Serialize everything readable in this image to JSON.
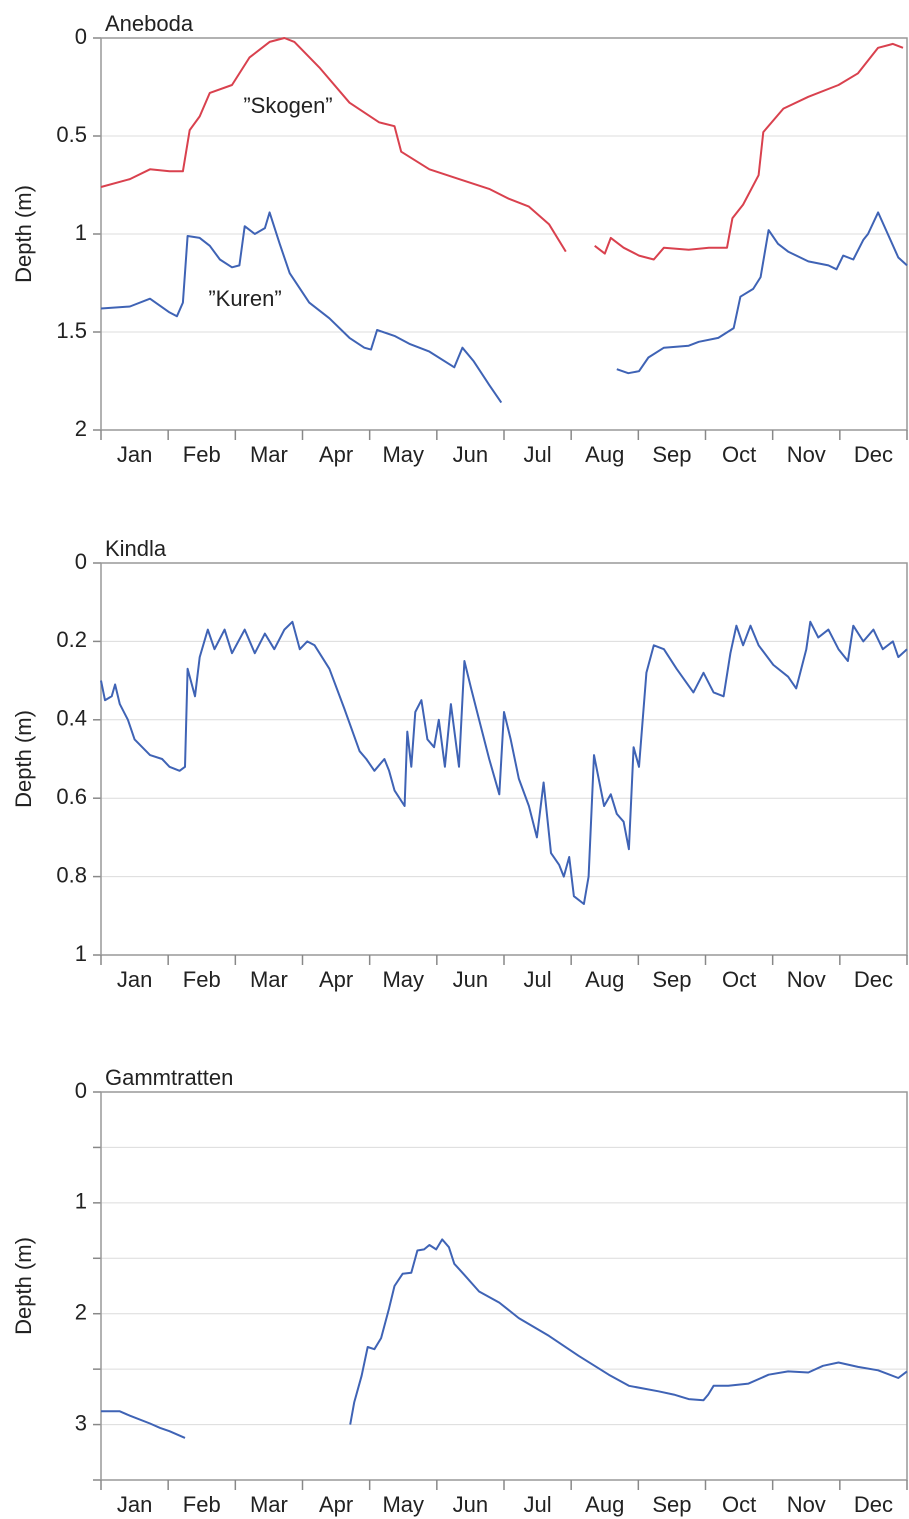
{
  "chart_data": [
    {
      "type": "line",
      "title": "Aneboda",
      "ylabel": "Depth (m)",
      "grid": true,
      "xlim": [
        0,
        12
      ],
      "xticks": [
        {
          "value": 0.5,
          "label": "Jan"
        },
        {
          "value": 1.5,
          "label": "Feb"
        },
        {
          "value": 2.5,
          "label": "Mar"
        },
        {
          "value": 3.5,
          "label": "Apr"
        },
        {
          "value": 4.5,
          "label": "May"
        },
        {
          "value": 5.5,
          "label": "Jun"
        },
        {
          "value": 6.5,
          "label": "Jul"
        },
        {
          "value": 7.5,
          "label": "Aug"
        },
        {
          "value": 8.5,
          "label": "Sep"
        },
        {
          "value": 9.5,
          "label": "Oct"
        },
        {
          "value": 10.5,
          "label": "Nov"
        },
        {
          "value": 11.5,
          "label": "Dec"
        }
      ],
      "ylim": [
        2,
        0
      ],
      "yticks": [
        0,
        0.5,
        {
          "value": 1,
          "label": "1.0"
        },
        1.5,
        {
          "value": 2,
          "label": "2.0"
        }
      ],
      "annotations": [
        "”Skogen”",
        "”Kuren”"
      ],
      "series": [
        {
          "name": "”Skogen”",
          "color": "#d9414e",
          "x": [
            0,
            0.43,
            0.73,
            1.02,
            1.22,
            1.32,
            1.47,
            1.62,
            1.95,
            2.21,
            2.51,
            2.73,
            2.88,
            3.25,
            3.7,
            4.14,
            4.37,
            4.47,
            4.89,
            5.33,
            5.78,
            6.07,
            6.37,
            6.67,
            6.92,
            7.1,
            7.35,
            7.5,
            7.59,
            7.78,
            8.01,
            8.23,
            8.38,
            8.75,
            9.05,
            9.32,
            9.4,
            9.56,
            9.79,
            9.86,
            10.16,
            10.53,
            10.98,
            11.27,
            11.57,
            11.79,
            11.94
          ],
          "values": [
            0.76,
            0.72,
            0.67,
            0.68,
            0.68,
            0.47,
            0.4,
            0.28,
            0.24,
            0.1,
            0.02,
            0,
            0.02,
            0.15,
            0.33,
            0.43,
            0.45,
            0.58,
            0.67,
            0.72,
            0.77,
            0.82,
            0.86,
            0.95,
            1.09,
            null,
            1.06,
            1.1,
            1.02,
            1.07,
            1.11,
            1.13,
            1.07,
            1.08,
            1.07,
            1.07,
            0.92,
            0.85,
            0.7,
            0.48,
            0.36,
            0.3,
            0.24,
            0.18,
            0.05,
            0.03,
            0.05
          ]
        },
        {
          "name": "”Kuren”",
          "color": "#3f63b5",
          "x": [
            0,
            0.43,
            0.73,
            1.02,
            1.13,
            1.22,
            1.29,
            1.47,
            1.62,
            1.77,
            1.95,
            2.06,
            2.14,
            2.29,
            2.44,
            2.51,
            2.66,
            2.81,
            3.1,
            3.4,
            3.7,
            3.92,
            4.02,
            4.11,
            4.37,
            4.59,
            4.89,
            5.26,
            5.38,
            5.55,
            5.78,
            5.96,
            7.0,
            7.68,
            7.85,
            8.01,
            8.15,
            8.38,
            8.75,
            8.9,
            9.19,
            9.42,
            9.52,
            9.71,
            9.82,
            9.94,
            10.08,
            10.23,
            10.53,
            10.83,
            10.95,
            11.05,
            11.2,
            11.35,
            11.42,
            11.57,
            11.87,
            12.0
          ],
          "values": [
            1.38,
            1.37,
            1.33,
            1.4,
            1.42,
            1.35,
            1.01,
            1.02,
            1.06,
            1.13,
            1.17,
            1.16,
            0.96,
            1.0,
            0.97,
            0.89,
            1.05,
            1.2,
            1.35,
            1.43,
            1.53,
            1.58,
            1.59,
            1.49,
            1.52,
            1.56,
            1.6,
            1.68,
            1.58,
            1.65,
            1.77,
            1.86,
            null,
            1.69,
            1.71,
            1.7,
            1.63,
            1.58,
            1.57,
            1.55,
            1.53,
            1.48,
            1.32,
            1.28,
            1.22,
            0.98,
            1.05,
            1.09,
            1.14,
            1.16,
            1.18,
            1.11,
            1.13,
            1.03,
            1.0,
            0.89,
            1.12,
            1.16
          ]
        }
      ]
    },
    {
      "type": "line",
      "title": "Kindla",
      "ylabel": "Depth (m)",
      "grid": true,
      "xlim": [
        0,
        12
      ],
      "xticks": [
        {
          "value": 0.5,
          "label": "Jan"
        },
        {
          "value": 1.5,
          "label": "Feb"
        },
        {
          "value": 2.5,
          "label": "Mar"
        },
        {
          "value": 3.5,
          "label": "Apr"
        },
        {
          "value": 4.5,
          "label": "May"
        },
        {
          "value": 5.5,
          "label": "Jun"
        },
        {
          "value": 6.5,
          "label": "Jul"
        },
        {
          "value": 7.5,
          "label": "Aug"
        },
        {
          "value": 8.5,
          "label": "Sep"
        },
        {
          "value": 9.5,
          "label": "Oct"
        },
        {
          "value": 10.5,
          "label": "Nov"
        },
        {
          "value": 11.5,
          "label": "Dec"
        }
      ],
      "ylim": [
        1,
        0
      ],
      "yticks": [
        0,
        0.2,
        0.4,
        0.6,
        0.8,
        {
          "value": 1,
          "label": "1.0"
        }
      ],
      "series": [
        {
          "name": "Kindla",
          "color": "#3f63b5",
          "x": [
            0,
            0.06,
            0.16,
            0.21,
            0.28,
            0.4,
            0.5,
            0.73,
            0.91,
            1.02,
            1.17,
            1.25,
            1.29,
            1.4,
            1.47,
            1.59,
            1.69,
            1.84,
            1.95,
            2.14,
            2.29,
            2.44,
            2.58,
            2.73,
            2.85,
            2.96,
            3.07,
            3.18,
            3.4,
            3.62,
            3.85,
            3.95,
            4.07,
            4.22,
            4.29,
            4.37,
            4.52,
            4.56,
            4.62,
            4.68,
            4.77,
            4.86,
            4.96,
            5.03,
            5.12,
            5.21,
            5.33,
            5.41,
            5.51,
            5.63,
            5.78,
            5.93,
            6.0,
            6.1,
            6.22,
            6.37,
            6.49,
            6.59,
            6.7,
            6.82,
            6.89,
            6.97,
            7.04,
            7.19,
            7.26,
            7.34,
            7.49,
            7.59,
            7.68,
            7.78,
            7.86,
            7.93,
            8.01,
            8.12,
            8.23,
            8.38,
            8.57,
            8.82,
            8.97,
            9.12,
            9.27,
            9.37,
            9.46,
            9.56,
            9.67,
            9.79,
            10.01,
            10.23,
            10.35,
            10.5,
            10.56,
            10.68,
            10.83,
            10.98,
            11.12,
            11.2,
            11.35,
            11.5,
            11.64,
            11.79,
            11.87,
            12.0
          ],
          "values": [
            0.3,
            0.35,
            0.34,
            0.31,
            0.36,
            0.4,
            0.45,
            0.49,
            0.5,
            0.52,
            0.53,
            0.52,
            0.27,
            0.34,
            0.24,
            0.17,
            0.22,
            0.17,
            0.23,
            0.17,
            0.23,
            0.18,
            0.22,
            0.17,
            0.15,
            0.22,
            0.2,
            0.21,
            0.27,
            0.37,
            0.48,
            0.5,
            0.53,
            0.5,
            0.53,
            0.58,
            0.62,
            0.43,
            0.52,
            0.38,
            0.35,
            0.45,
            0.47,
            0.4,
            0.52,
            0.36,
            0.52,
            0.25,
            0.32,
            0.4,
            0.5,
            0.59,
            0.38,
            0.45,
            0.55,
            0.62,
            0.7,
            0.56,
            0.74,
            0.77,
            0.8,
            0.75,
            0.85,
            0.87,
            0.8,
            0.49,
            0.62,
            0.59,
            0.64,
            0.66,
            0.73,
            0.47,
            0.52,
            0.28,
            0.21,
            0.22,
            0.27,
            0.33,
            0.28,
            0.33,
            0.34,
            0.23,
            0.16,
            0.21,
            0.16,
            0.21,
            0.26,
            0.29,
            0.32,
            0.22,
            0.15,
            0.19,
            0.17,
            0.22,
            0.25,
            0.16,
            0.2,
            0.17,
            0.22,
            0.2,
            0.24,
            0.22
          ]
        }
      ]
    },
    {
      "type": "line",
      "title": "Gammtratten",
      "ylabel": "Depth (m)",
      "grid": true,
      "xlim": [
        0,
        12
      ],
      "xticks": [
        {
          "value": 0.5,
          "label": "Jan"
        },
        {
          "value": 1.5,
          "label": "Feb"
        },
        {
          "value": 2.5,
          "label": "Mar"
        },
        {
          "value": 3.5,
          "label": "Apr"
        },
        {
          "value": 4.5,
          "label": "May"
        },
        {
          "value": 5.5,
          "label": "Jun"
        },
        {
          "value": 6.5,
          "label": "Jul"
        },
        {
          "value": 7.5,
          "label": "Aug"
        },
        {
          "value": 8.5,
          "label": "Sep"
        },
        {
          "value": 9.5,
          "label": "Oct"
        },
        {
          "value": 10.5,
          "label": "Nov"
        },
        {
          "value": 11.5,
          "label": "Dec"
        }
      ],
      "ylim": [
        3.5,
        0
      ],
      "yticks": [
        0,
        {
          "value": 1,
          "label": "1.0"
        },
        {
          "value": 2,
          "label": "2.0"
        },
        {
          "value": 3,
          "label": "3.0"
        }
      ],
      "yminor": [
        0.5,
        1.5,
        2.5,
        3.5
      ],
      "series": [
        {
          "name": "Gammtratten",
          "color": "#3f63b5",
          "x": [
            0,
            0.28,
            0.43,
            0.73,
            0.88,
            1.02,
            1.25,
            2.4,
            3.71,
            3.77,
            3.88,
            3.97,
            4.07,
            4.17,
            4.29,
            4.37,
            4.49,
            4.62,
            4.71,
            4.81,
            4.89,
            4.99,
            5.08,
            5.18,
            5.26,
            5.41,
            5.63,
            5.93,
            6.22,
            6.67,
            7.11,
            7.56,
            7.86,
            8.3,
            8.53,
            8.75,
            8.97,
            9.04,
            9.12,
            9.34,
            9.64,
            9.94,
            10.23,
            10.53,
            10.75,
            10.98,
            11.27,
            11.57,
            11.87,
            12.0
          ],
          "values": [
            2.88,
            2.88,
            2.92,
            2.99,
            3.03,
            3.06,
            3.12,
            null,
            3.0,
            2.8,
            2.56,
            2.3,
            2.32,
            2.22,
            1.95,
            1.75,
            1.64,
            1.63,
            1.43,
            1.42,
            1.38,
            1.42,
            1.33,
            1.4,
            1.55,
            1.65,
            1.8,
            1.9,
            2.04,
            2.2,
            2.38,
            2.55,
            2.65,
            2.7,
            2.73,
            2.77,
            2.78,
            2.73,
            2.65,
            2.65,
            2.63,
            2.55,
            2.52,
            2.53,
            2.47,
            2.44,
            2.48,
            2.51,
            2.58,
            2.52
          ]
        }
      ]
    }
  ]
}
